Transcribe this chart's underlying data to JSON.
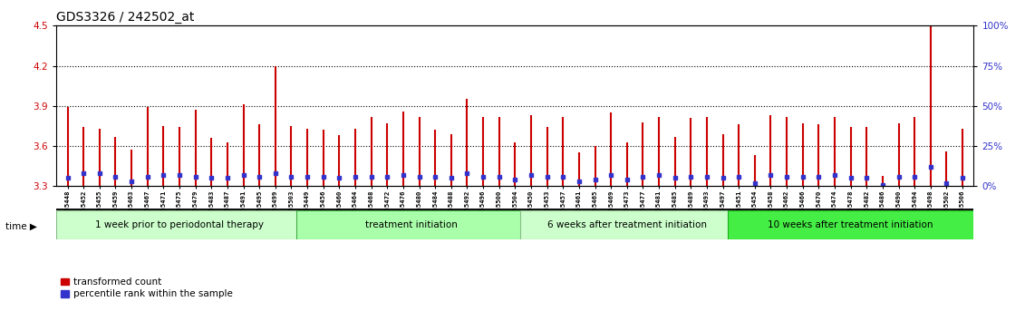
{
  "title": "GDS3326 / 242502_at",
  "ylim": [
    3.3,
    4.5
  ],
  "yticks": [
    3.3,
    3.6,
    3.9,
    4.2,
    4.5
  ],
  "right_yticks": [
    0,
    25,
    50,
    75,
    100
  ],
  "baseline": 3.3,
  "bar_color": "#cc0000",
  "dot_color": "#3333cc",
  "right_axis_color": "#3333cc",
  "samples": [
    "GSM155448",
    "GSM155452",
    "GSM155455",
    "GSM155459",
    "GSM155463",
    "GSM155467",
    "GSM155471",
    "GSM155475",
    "GSM155479",
    "GSM155483",
    "GSM155487",
    "GSM155491",
    "GSM155495",
    "GSM155499",
    "GSM155503",
    "GSM155449",
    "GSM155456",
    "GSM155460",
    "GSM155464",
    "GSM155468",
    "GSM155472",
    "GSM155476",
    "GSM155480",
    "GSM155484",
    "GSM155488",
    "GSM155492",
    "GSM155496",
    "GSM155500",
    "GSM155504",
    "GSM155450",
    "GSM155453",
    "GSM155457",
    "GSM155461",
    "GSM155465",
    "GSM155469",
    "GSM155473",
    "GSM155477",
    "GSM155481",
    "GSM155485",
    "GSM155489",
    "GSM155493",
    "GSM155497",
    "GSM155451",
    "GSM155454",
    "GSM155458",
    "GSM155462",
    "GSM155466",
    "GSM155470",
    "GSM155474",
    "GSM155478",
    "GSM155482",
    "GSM155486",
    "GSM155490",
    "GSM155494",
    "GSM155498",
    "GSM155502",
    "GSM155506"
  ],
  "values": [
    3.89,
    3.74,
    3.73,
    3.67,
    3.57,
    3.89,
    3.75,
    3.74,
    3.87,
    3.66,
    3.63,
    3.91,
    3.76,
    4.2,
    3.75,
    3.73,
    3.72,
    3.68,
    3.73,
    3.82,
    3.77,
    3.86,
    3.82,
    3.72,
    3.69,
    3.95,
    3.82,
    3.82,
    3.63,
    3.83,
    3.74,
    3.82,
    3.55,
    3.6,
    3.85,
    3.63,
    3.78,
    3.82,
    3.67,
    3.81,
    3.82,
    3.69,
    3.76,
    3.53,
    3.83,
    3.82,
    3.77,
    3.76,
    3.82,
    3.74,
    3.74,
    3.38,
    3.77,
    3.82,
    4.5,
    3.56,
    3.73
  ],
  "percentiles": [
    5,
    8,
    8,
    6,
    3,
    6,
    7,
    7,
    6,
    5,
    5,
    7,
    6,
    8,
    6,
    6,
    6,
    5,
    6,
    6,
    6,
    7,
    6,
    6,
    5,
    8,
    6,
    6,
    4,
    7,
    6,
    6,
    3,
    4,
    7,
    4,
    6,
    7,
    5,
    6,
    6,
    5,
    6,
    2,
    7,
    6,
    6,
    6,
    7,
    5,
    5,
    1,
    6,
    6,
    12,
    2,
    5
  ],
  "group_boundaries": [
    {
      "start": 0,
      "end": 15,
      "label": "1 week prior to periodontal therapy",
      "facecolor": "#ccffcc",
      "edgecolor": "#88bb88"
    },
    {
      "start": 15,
      "end": 29,
      "label": "treatment initiation",
      "facecolor": "#aaffaa",
      "edgecolor": "#44aa44"
    },
    {
      "start": 29,
      "end": 42,
      "label": "6 weeks after treatment initiation",
      "facecolor": "#ccffcc",
      "edgecolor": "#88bb88"
    },
    {
      "start": 42,
      "end": 57,
      "label": "10 weeks after treatment initiation",
      "facecolor": "#44ee44",
      "edgecolor": "#22aa22"
    }
  ],
  "legend_red": "transformed count",
  "legend_blue": "percentile rank within the sample",
  "ytick_color": "#cc0000",
  "title_fontsize": 10,
  "bar_linewidth": 1.5,
  "dot_size": 3.0
}
